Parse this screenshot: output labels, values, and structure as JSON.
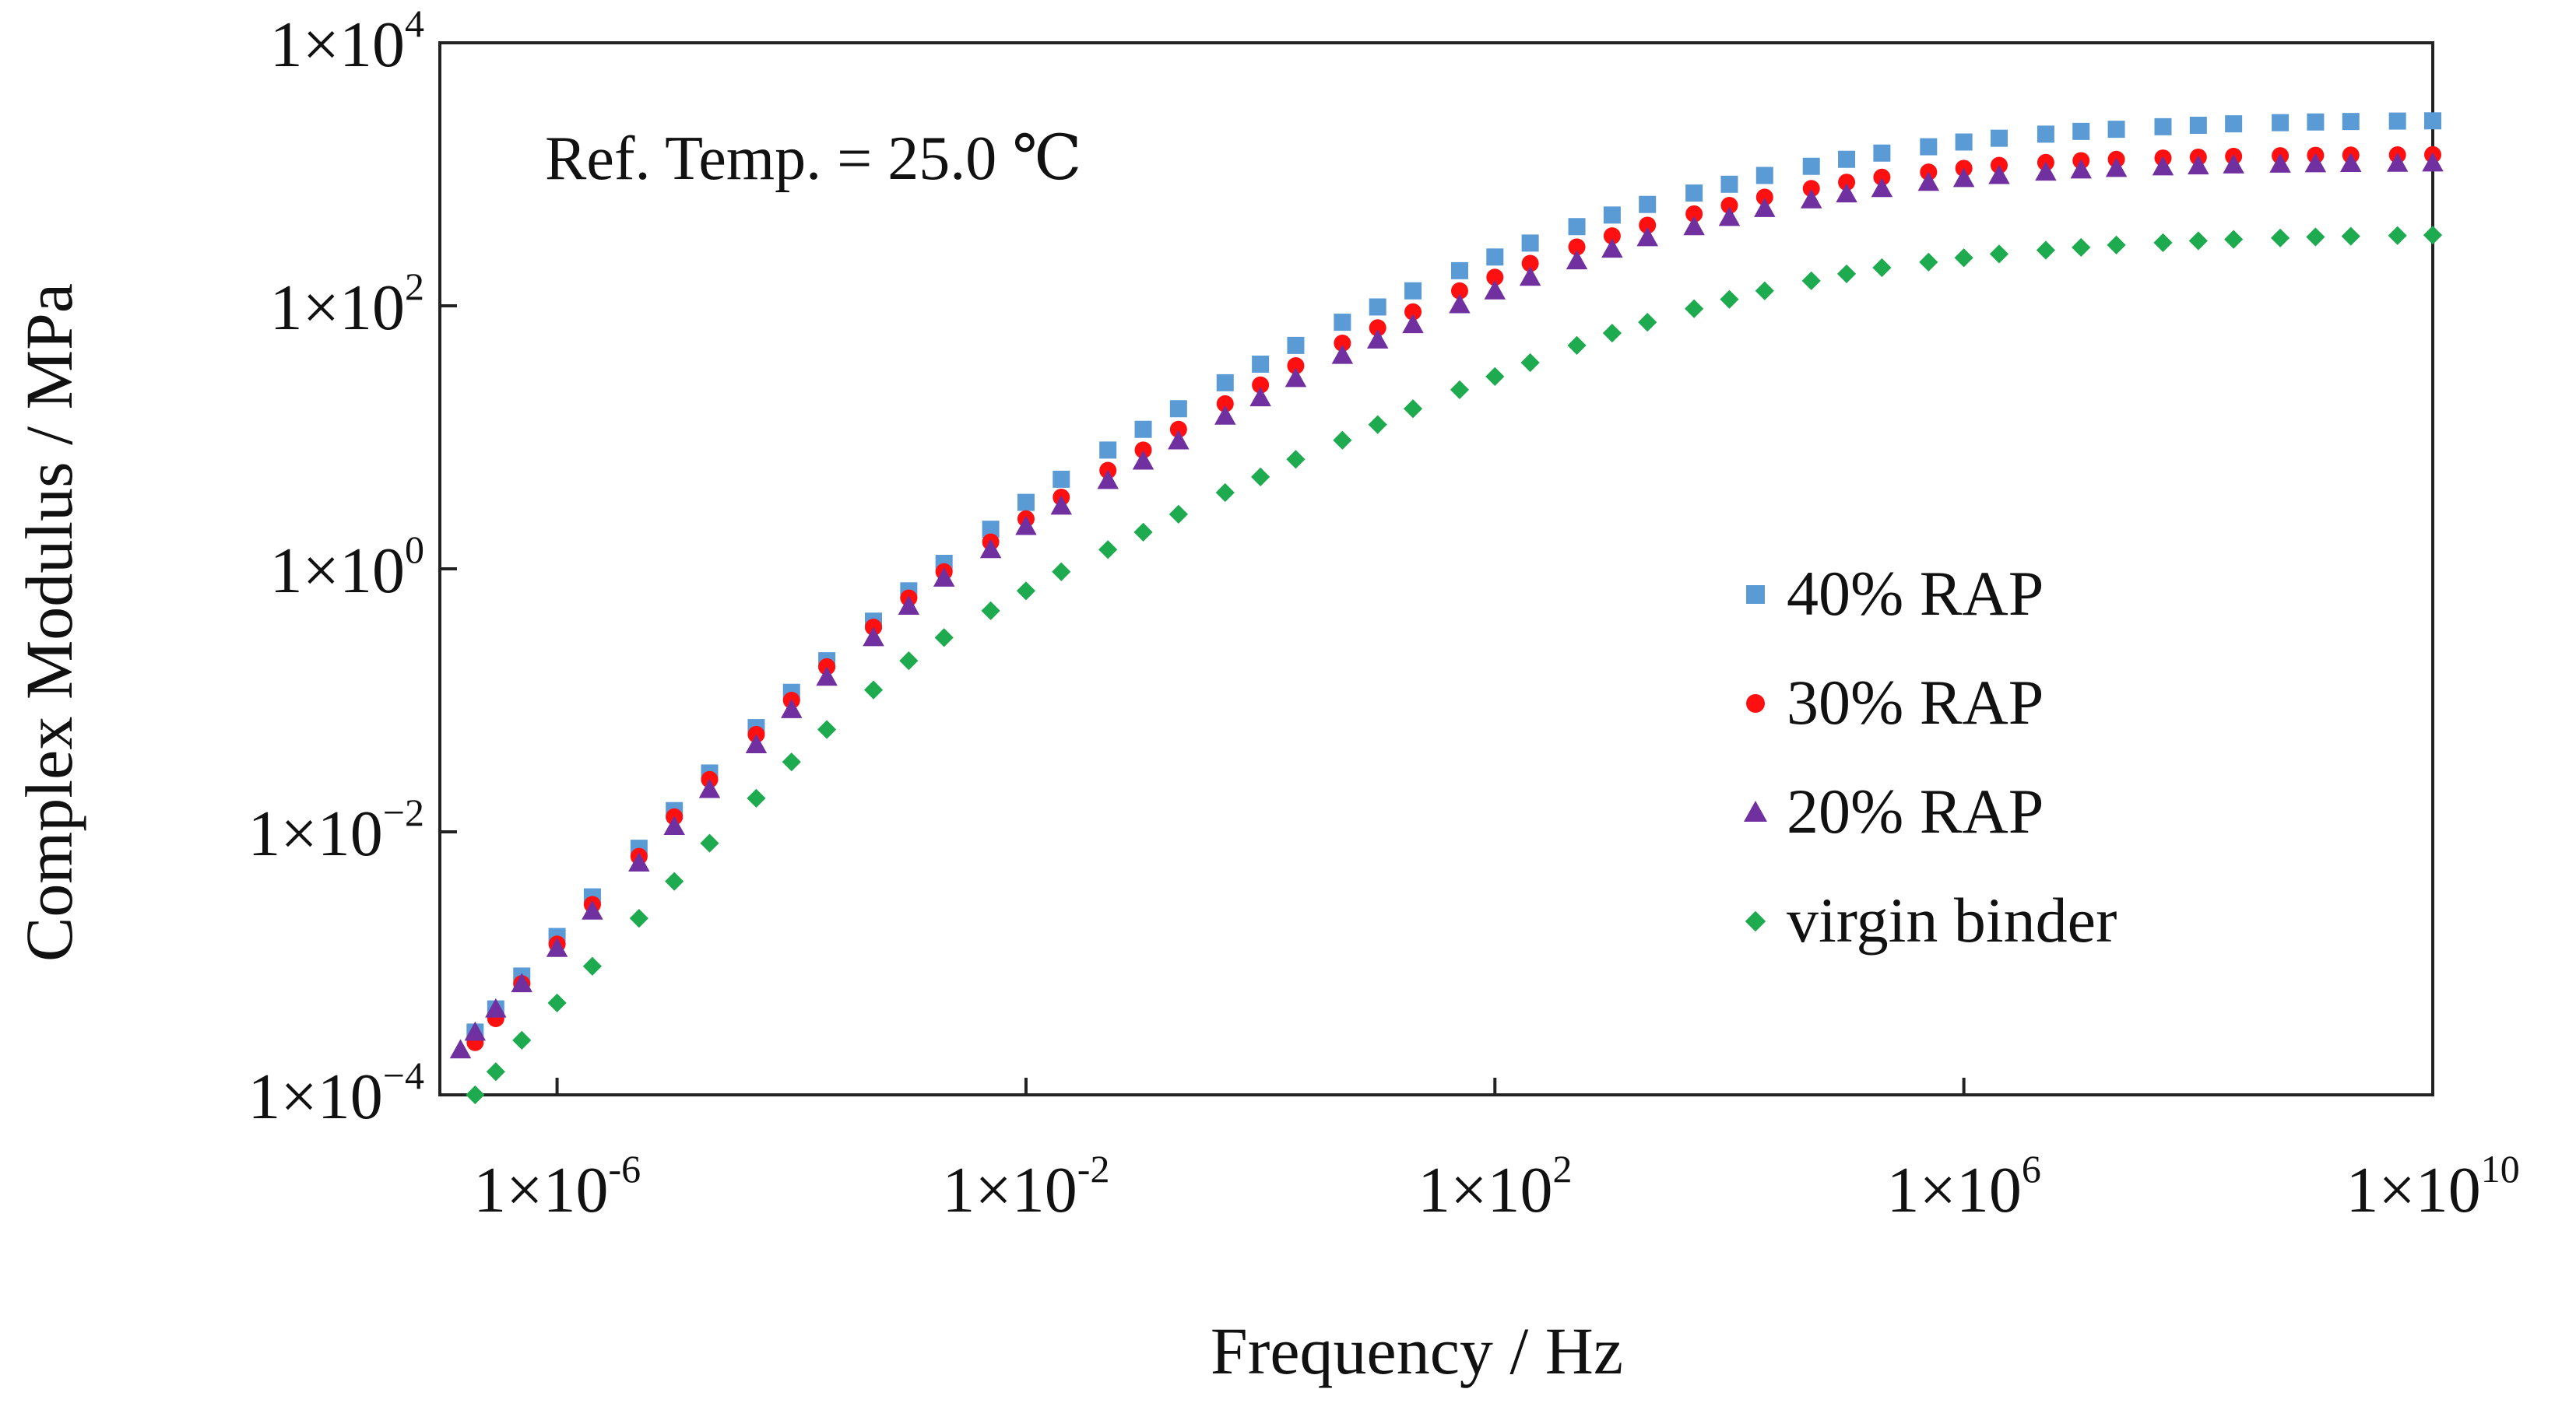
{
  "chart_data": {
    "type": "scatter",
    "title": "",
    "annotation": "Ref. Temp. = 25.0 ℃",
    "xlabel": "Frequency / Hz",
    "ylabel": "Complex Modulus / MPa",
    "xscale": "log",
    "yscale": "log",
    "xlim": [
      1e-07,
      10000000000.0
    ],
    "ylim": [
      0.0001,
      10000.0
    ],
    "x_ticks": [
      {
        "mantissa": "1",
        "times": "×",
        "base": "10",
        "exp": "-6",
        "value": 1e-06
      },
      {
        "mantissa": "1",
        "times": "×",
        "base": "10",
        "exp": "-2",
        "value": 0.01
      },
      {
        "mantissa": "1",
        "times": "×",
        "base": "10",
        "exp": "2",
        "value": 100
      },
      {
        "mantissa": "1",
        "times": "×",
        "base": "10",
        "exp": "6",
        "value": 1000000
      },
      {
        "mantissa": "1",
        "times": "×",
        "base": "10",
        "exp": "10",
        "value": 10000000000
      }
    ],
    "y_ticks": [
      {
        "mantissa": "1",
        "times": "×",
        "base": "10",
        "exp": "−4",
        "value": 0.0001
      },
      {
        "mantissa": "1",
        "times": "×",
        "base": "10",
        "exp": "−2",
        "value": 0.01
      },
      {
        "mantissa": "1",
        "times": "×",
        "base": "10",
        "exp": "0",
        "value": 1
      },
      {
        "mantissa": "1",
        "times": "×",
        "base": "10",
        "exp": "2",
        "value": 100
      },
      {
        "mantissa": "1",
        "times": "×",
        "base": "10",
        "exp": "4",
        "value": 10000
      }
    ],
    "legend_position": "right-middle",
    "series": [
      {
        "name": "40% RAP",
        "marker": "square",
        "color": "#5b9bd5",
        "x": [
          2e-07,
          3e-07,
          5e-07,
          1e-06,
          2e-06,
          5e-06,
          1e-05,
          2e-05,
          5e-05,
          0.0001,
          0.0002,
          0.0005,
          0.001,
          0.002,
          0.005,
          0.01,
          0.02,
          0.05,
          0.1,
          0.2,
          0.5,
          1,
          2,
          5,
          10,
          20,
          50,
          100,
          200,
          500,
          1000,
          2000,
          5000,
          10000,
          20000,
          50000,
          100000,
          200000,
          500000,
          1000000,
          2000000,
          5000000,
          10000000,
          20000000,
          50000000,
          100000000,
          200000000,
          500000000,
          1000000000,
          2000000000,
          5000000000,
          10000000000
        ],
        "y": [
          0.0003,
          0.00045,
          0.0008,
          0.0016,
          0.0032,
          0.0075,
          0.0145,
          0.028,
          0.062,
          0.115,
          0.2,
          0.4,
          0.68,
          1.1,
          2.0,
          3.2,
          4.8,
          8.0,
          11.5,
          16.5,
          26,
          36,
          50,
          75,
          98,
          130,
          185,
          235,
          300,
          400,
          490,
          590,
          720,
          840,
          980,
          1150,
          1300,
          1450,
          1620,
          1760,
          1880,
          2020,
          2120,
          2200,
          2300,
          2360,
          2420,
          2470,
          2500,
          2520,
          2540,
          2550
        ]
      },
      {
        "name": "30% RAP",
        "marker": "circle",
        "color": "#ff1010",
        "x": [
          2e-07,
          3e-07,
          5e-07,
          1e-06,
          2e-06,
          5e-06,
          1e-05,
          2e-05,
          5e-05,
          0.0001,
          0.0002,
          0.0005,
          0.001,
          0.002,
          0.005,
          0.01,
          0.02,
          0.05,
          0.1,
          0.2,
          0.5,
          1,
          2,
          5,
          10,
          20,
          50,
          100,
          200,
          500,
          1000,
          2000,
          5000,
          10000,
          20000,
          50000,
          100000,
          200000,
          500000,
          1000000,
          2000000,
          5000000,
          10000000,
          20000000,
          50000000,
          100000000,
          200000000,
          500000000,
          1000000000,
          2000000000,
          5000000000,
          10000000000
        ],
        "y": [
          0.00025,
          0.00038,
          0.0007,
          0.0014,
          0.0028,
          0.0065,
          0.013,
          0.025,
          0.055,
          0.1,
          0.18,
          0.36,
          0.6,
          0.95,
          1.6,
          2.4,
          3.5,
          5.6,
          8.0,
          11.5,
          18,
          25,
          35,
          52,
          68,
          90,
          130,
          165,
          210,
          280,
          340,
          410,
          500,
          580,
          670,
          780,
          870,
          950,
          1040,
          1110,
          1170,
          1230,
          1270,
          1300,
          1330,
          1350,
          1370,
          1385,
          1395,
          1400,
          1405,
          1410
        ]
      },
      {
        "name": "20% RAP",
        "marker": "triangle",
        "color": "#7030a0",
        "x": [
          1.5e-07,
          2e-07,
          3e-07,
          5e-07,
          1e-06,
          2e-06,
          5e-06,
          1e-05,
          2e-05,
          5e-05,
          0.0001,
          0.0002,
          0.0005,
          0.001,
          0.002,
          0.005,
          0.01,
          0.02,
          0.05,
          0.1,
          0.2,
          0.5,
          1,
          2,
          5,
          10,
          20,
          50,
          100,
          200,
          500,
          1000,
          2000,
          5000,
          10000,
          20000,
          50000,
          100000,
          200000,
          500000,
          1000000,
          2000000,
          5000000,
          10000000,
          20000000,
          50000000,
          100000000,
          200000000,
          500000000,
          1000000000,
          2000000000,
          5000000000,
          10000000000
        ],
        "y": [
          0.00022,
          0.0003,
          0.00045,
          0.0007,
          0.0013,
          0.0025,
          0.0058,
          0.011,
          0.021,
          0.046,
          0.085,
          0.15,
          0.3,
          0.52,
          0.85,
          1.4,
          2.1,
          3.0,
          4.7,
          6.6,
          9.4,
          14.5,
          20,
          28,
          42,
          55,
          72,
          102,
          130,
          165,
          220,
          270,
          330,
          400,
          470,
          550,
          640,
          710,
          780,
          870,
          930,
          980,
          1040,
          1080,
          1110,
          1140,
          1160,
          1180,
          1195,
          1205,
          1210,
          1215,
          1220
        ]
      },
      {
        "name": "virgin binder",
        "marker": "diamond",
        "color": "#1eaa4f",
        "x": [
          2e-07,
          3e-07,
          5e-07,
          1e-06,
          2e-06,
          5e-06,
          1e-05,
          2e-05,
          5e-05,
          0.0001,
          0.0002,
          0.0005,
          0.001,
          0.002,
          0.005,
          0.01,
          0.02,
          0.05,
          0.1,
          0.2,
          0.5,
          1,
          2,
          5,
          10,
          20,
          50,
          100,
          200,
          500,
          1000,
          2000,
          5000,
          10000,
          20000,
          50000,
          100000,
          200000,
          500000,
          1000000,
          2000000,
          5000000,
          10000000,
          20000000,
          50000000,
          100000000,
          200000000,
          500000000,
          1000000000,
          2000000000,
          5000000000,
          10000000000
        ],
        "y": [
          0.0001,
          0.00015,
          0.00026,
          0.0005,
          0.00095,
          0.0022,
          0.0042,
          0.0082,
          0.018,
          0.034,
          0.06,
          0.12,
          0.2,
          0.3,
          0.48,
          0.68,
          0.95,
          1.4,
          1.9,
          2.6,
          3.8,
          5.0,
          6.8,
          9.5,
          12.5,
          16.5,
          23,
          29,
          37,
          50,
          62,
          75,
          95,
          112,
          130,
          155,
          175,
          195,
          215,
          232,
          248,
          265,
          278,
          290,
          302,
          312,
          320,
          328,
          334,
          338,
          342,
          345
        ]
      }
    ]
  }
}
